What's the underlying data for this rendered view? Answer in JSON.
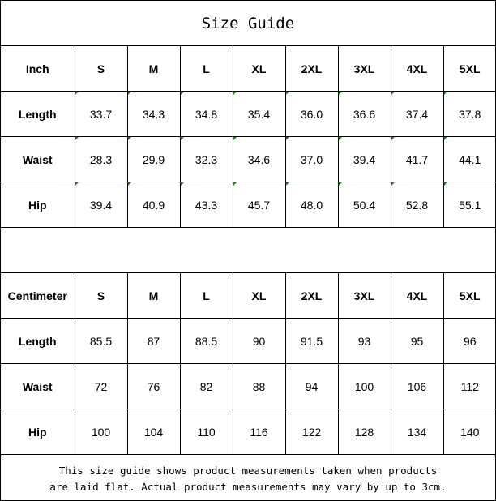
{
  "title": "Size Guide",
  "inch_table": {
    "header": [
      "Inch",
      "S",
      "M",
      "L",
      "XL",
      "2XL",
      "3XL",
      "4XL",
      "5XL"
    ],
    "rows": [
      {
        "label": "Length",
        "values": [
          "33.7",
          "34.3",
          "34.8",
          "35.4",
          "36.0",
          "36.6",
          "37.4",
          "37.8"
        ]
      },
      {
        "label": "Waist",
        "values": [
          "28.3",
          "29.9",
          "32.3",
          "34.6",
          "37.0",
          "39.4",
          "41.7",
          "44.1"
        ]
      },
      {
        "label": "Hip",
        "values": [
          "39.4",
          "40.9",
          "43.3",
          "45.7",
          "48.0",
          "50.4",
          "52.8",
          "55.1"
        ]
      }
    ]
  },
  "cm_table": {
    "header": [
      "Centimeter",
      "S",
      "M",
      "L",
      "XL",
      "2XL",
      "3XL",
      "4XL",
      "5XL"
    ],
    "rows": [
      {
        "label": "Length",
        "values": [
          "85.5",
          "87",
          "88.5",
          "90",
          "91.5",
          "93",
          "95",
          "96"
        ]
      },
      {
        "label": "Waist",
        "values": [
          "72",
          "76",
          "82",
          "88",
          "94",
          "100",
          "106",
          "112"
        ]
      },
      {
        "label": "Hip",
        "values": [
          "100",
          "104",
          "110",
          "116",
          "122",
          "128",
          "134",
          "140"
        ]
      }
    ]
  },
  "note": {
    "line1": "This size guide shows product measurements taken when products",
    "line2": "are laid flat. Actual product measurements may vary by up to 3cm."
  },
  "colors": {
    "cell_marker": "#1a8a1a",
    "border": "#000000"
  }
}
